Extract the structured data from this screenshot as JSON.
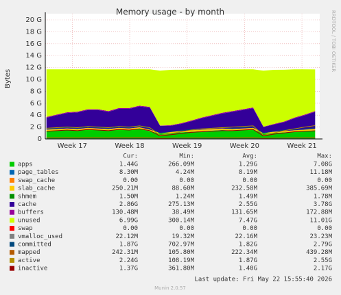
{
  "chart_data": {
    "type": "area",
    "title": "Memory usage - by month",
    "y_label": "Bytes",
    "side_text": "RRDTOOL / TOBI OETIKER",
    "footer": "Last update: Fri May 22 15:55:40 2026",
    "version": "Munin 2.0.57",
    "stat_headers": [
      "Cur:",
      "Min:",
      "Avg:",
      "Max:"
    ],
    "ylim": [
      0,
      20
    ],
    "yticks": [
      {
        "value": 0,
        "label": "0"
      },
      {
        "value": 2,
        "label": "2 G"
      },
      {
        "value": 4,
        "label": "4 G"
      },
      {
        "value": 6,
        "label": "6 G"
      },
      {
        "value": 8,
        "label": "8 G"
      },
      {
        "value": 10,
        "label": "10 G"
      },
      {
        "value": 12,
        "label": "12 G"
      },
      {
        "value": 14,
        "label": "14 G"
      },
      {
        "value": 16,
        "label": "16 G"
      },
      {
        "value": 18,
        "label": "18 G"
      },
      {
        "value": 20,
        "label": "20 G"
      }
    ],
    "xlim": [
      16.53,
      21.31
    ],
    "xticks": [
      {
        "value": 17,
        "label": "Week 17"
      },
      {
        "value": 18,
        "label": "Week 18"
      },
      {
        "value": 19,
        "label": "Week 19"
      },
      {
        "value": 20,
        "label": "Week 20"
      },
      {
        "value": 21,
        "label": "Week 21"
      }
    ],
    "grid": true,
    "x": [
      16.55,
      16.73,
      16.91,
      17.09,
      17.27,
      17.45,
      17.63,
      17.81,
      17.99,
      18.17,
      18.35,
      18.53,
      18.71,
      18.89,
      19.07,
      19.25,
      19.43,
      19.61,
      19.79,
      19.97,
      20.15,
      20.33,
      20.51,
      20.69,
      20.87,
      21.05,
      21.23
    ],
    "series": [
      {
        "name": "apps",
        "color": "#00cc00",
        "kind": "area",
        "stats": [
          "1.44G",
          "266.09M",
          "1.29G",
          "7.08G"
        ],
        "values": [
          1.3,
          1.4,
          1.5,
          1.4,
          1.6,
          1.5,
          1.4,
          1.6,
          1.5,
          1.7,
          1.3,
          0.9,
          1.0,
          1.1,
          1.2,
          1.3,
          1.4,
          1.5,
          1.4,
          1.5,
          1.6,
          0.9,
          1.0,
          1.1,
          1.2,
          1.3,
          1.44
        ]
      },
      {
        "name": "page_tables",
        "color": "#0066b3",
        "kind": "area",
        "stats": [
          "8.30M",
          "4.24M",
          "8.19M",
          "11.18M"
        ],
        "values": [
          0.008,
          0.008,
          0.008,
          0.008,
          0.008,
          0.008,
          0.008,
          0.008,
          0.008,
          0.008,
          0.008,
          0.008,
          0.008,
          0.008,
          0.008,
          0.008,
          0.008,
          0.008,
          0.008,
          0.008,
          0.008,
          0.008,
          0.008,
          0.008,
          0.008,
          0.008,
          0.008
        ]
      },
      {
        "name": "swap_cache",
        "color": "#ff8000",
        "kind": "area",
        "stats": [
          "0.00",
          "0.00",
          "0.00",
          "0.00"
        ],
        "values": [
          0,
          0,
          0,
          0,
          0,
          0,
          0,
          0,
          0,
          0,
          0,
          0,
          0,
          0,
          0,
          0,
          0,
          0,
          0,
          0,
          0,
          0,
          0,
          0,
          0,
          0,
          0
        ]
      },
      {
        "name": "slab_cache",
        "color": "#ffcc00",
        "kind": "area",
        "stats": [
          "250.21M",
          "88.60M",
          "232.58M",
          "385.69M"
        ],
        "values": [
          0.25,
          0.25,
          0.25,
          0.25,
          0.25,
          0.25,
          0.25,
          0.25,
          0.25,
          0.25,
          0.25,
          0.1,
          0.2,
          0.2,
          0.25,
          0.25,
          0.25,
          0.25,
          0.25,
          0.25,
          0.25,
          0.1,
          0.2,
          0.2,
          0.25,
          0.25,
          0.25
        ]
      },
      {
        "name": "shmem",
        "color": "#008f00",
        "kind": "area",
        "stats": [
          "1.50M",
          "1.24M",
          "1.49M",
          "1.78M"
        ],
        "values": [
          0.0015,
          0.0015,
          0.0015,
          0.0015,
          0.0015,
          0.0015,
          0.0015,
          0.0015,
          0.0015,
          0.0015,
          0.0015,
          0.0015,
          0.0015,
          0.0015,
          0.0015,
          0.0015,
          0.0015,
          0.0015,
          0.0015,
          0.0015,
          0.0015,
          0.0015,
          0.0015,
          0.0015,
          0.0015,
          0.0015,
          0.0015
        ]
      },
      {
        "name": "cache",
        "color": "#330099",
        "kind": "area",
        "stats": [
          "2.86G",
          "275.13M",
          "2.55G",
          "3.78G"
        ],
        "values": [
          2.0,
          2.3,
          2.6,
          2.8,
          3.0,
          3.1,
          2.9,
          3.2,
          3.3,
          3.5,
          3.7,
          1.2,
          1.0,
          1.2,
          1.5,
          1.9,
          2.2,
          2.5,
          2.9,
          3.1,
          3.3,
          1.0,
          1.2,
          1.5,
          2.0,
          2.4,
          2.86
        ]
      },
      {
        "name": "buffers",
        "color": "#990099",
        "kind": "area",
        "stats": [
          "130.48M",
          "38.49M",
          "131.65M",
          "172.88M"
        ],
        "values": [
          0.13,
          0.13,
          0.13,
          0.13,
          0.13,
          0.13,
          0.13,
          0.13,
          0.13,
          0.13,
          0.13,
          0.05,
          0.1,
          0.12,
          0.13,
          0.13,
          0.13,
          0.13,
          0.13,
          0.13,
          0.13,
          0.05,
          0.1,
          0.12,
          0.13,
          0.13,
          0.13
        ]
      },
      {
        "name": "unused",
        "color": "#ccff00",
        "kind": "area",
        "stats": [
          "6.99G",
          "300.14M",
          "7.47G",
          "11.01G"
        ],
        "values": [
          8.0,
          7.6,
          7.2,
          7.1,
          6.7,
          6.7,
          7.0,
          6.5,
          6.5,
          6.1,
          6.3,
          9.2,
          9.3,
          9.0,
          8.6,
          8.1,
          7.7,
          7.3,
          7.0,
          6.7,
          6.4,
          9.4,
          9.1,
          8.7,
          8.1,
          7.6,
          6.99
        ]
      },
      {
        "name": "swap",
        "color": "#ff0000",
        "kind": "line",
        "stats": [
          "0.00",
          "0.00",
          "0.00",
          "0.00"
        ],
        "values": [
          0,
          0,
          0,
          0,
          0,
          0,
          0,
          0,
          0,
          0,
          0,
          0,
          0,
          0,
          0,
          0,
          0,
          0,
          0,
          0,
          0,
          0,
          0,
          0,
          0,
          0,
          0
        ]
      },
      {
        "name": "vmalloc_used",
        "color": "#808080",
        "kind": "line",
        "stats": [
          "22.12M",
          "19.32M",
          "22.16M",
          "23.23M"
        ],
        "values": [
          0.022,
          0.022,
          0.022,
          0.022,
          0.022,
          0.022,
          0.022,
          0.022,
          0.022,
          0.022,
          0.022,
          0.022,
          0.022,
          0.022,
          0.022,
          0.022,
          0.022,
          0.022,
          0.022,
          0.022,
          0.022,
          0.022,
          0.022,
          0.022,
          0.022,
          0.022,
          0.022
        ]
      },
      {
        "name": "committed",
        "color": "#00487d",
        "kind": "line",
        "stats": [
          "1.87G",
          "702.97M",
          "1.82G",
          "2.79G"
        ],
        "values": [
          1.7,
          1.8,
          1.9,
          1.8,
          2.0,
          1.9,
          1.8,
          2.0,
          1.9,
          2.1,
          1.8,
          1.0,
          1.2,
          1.4,
          1.6,
          1.7,
          1.8,
          1.9,
          1.8,
          1.9,
          2.0,
          1.0,
          1.3,
          1.5,
          1.6,
          1.7,
          1.87
        ]
      },
      {
        "name": "mapped",
        "color": "#b35a00",
        "kind": "line",
        "stats": [
          "242.31M",
          "105.80M",
          "222.34M",
          "439.28M"
        ],
        "values": [
          0.22,
          0.23,
          0.24,
          0.22,
          0.25,
          0.23,
          0.22,
          0.24,
          0.23,
          0.25,
          0.22,
          0.11,
          0.15,
          0.18,
          0.2,
          0.22,
          0.22,
          0.23,
          0.22,
          0.23,
          0.24,
          0.11,
          0.16,
          0.19,
          0.21,
          0.23,
          0.24
        ]
      },
      {
        "name": "active",
        "color": "#b38f00",
        "kind": "line",
        "stats": [
          "2.24G",
          "108.19M",
          "1.87G",
          "2.55G"
        ],
        "values": [
          1.8,
          1.9,
          2.0,
          1.9,
          2.1,
          2.0,
          1.9,
          2.1,
          2.0,
          2.2,
          1.9,
          0.6,
          0.9,
          1.2,
          1.5,
          1.7,
          1.8,
          1.9,
          2.0,
          2.1,
          2.2,
          0.6,
          1.0,
          1.4,
          1.7,
          2.0,
          2.24
        ]
      },
      {
        "name": "inactive",
        "color": "#990000",
        "kind": "line",
        "stats": [
          "1.37G",
          "361.80M",
          "1.40G",
          "2.17G"
        ],
        "values": [
          1.3,
          1.4,
          1.5,
          1.4,
          1.6,
          1.5,
          1.4,
          1.6,
          1.5,
          1.7,
          1.4,
          0.5,
          0.7,
          0.9,
          1.1,
          1.2,
          1.3,
          1.4,
          1.4,
          1.5,
          1.6,
          0.5,
          0.8,
          1.0,
          1.2,
          1.3,
          1.37
        ]
      }
    ]
  }
}
